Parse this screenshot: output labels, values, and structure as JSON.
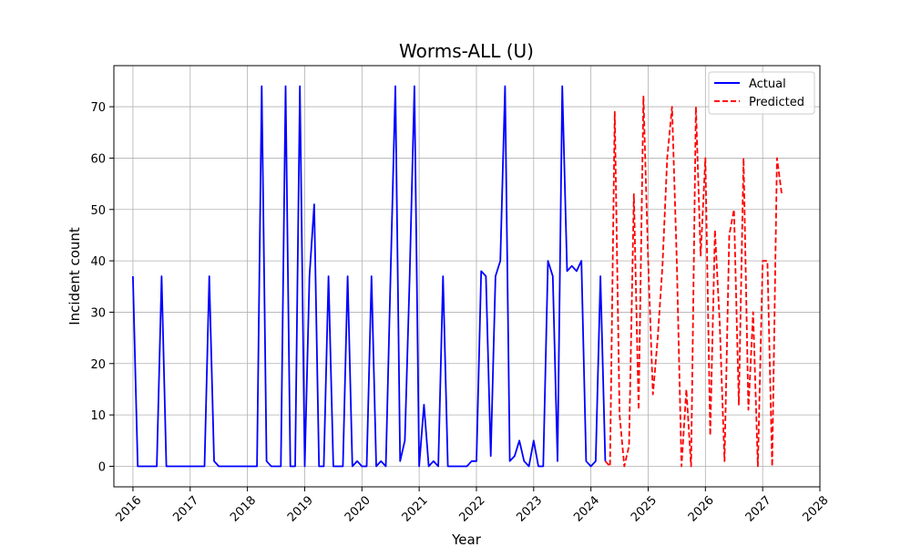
{
  "chart_data": {
    "type": "line",
    "title": "Worms-ALL (U)",
    "xlabel": "Year",
    "ylabel": "Incident count",
    "xlim": [
      "2015-09-01",
      "2028-01-01"
    ],
    "ylim": [
      -4,
      78
    ],
    "x_ticks": [
      "2016",
      "2017",
      "2018",
      "2019",
      "2020",
      "2021",
      "2022",
      "2023",
      "2024",
      "2025",
      "2026",
      "2027",
      "2028"
    ],
    "y_ticks": [
      0,
      10,
      20,
      30,
      40,
      50,
      60,
      70
    ],
    "grid": true,
    "legend_position": "top-right",
    "series": [
      {
        "name": "Actual",
        "color": "#0000ff",
        "style": "solid",
        "x": [
          "2016-01",
          "2016-02",
          "2016-03",
          "2016-04",
          "2016-05",
          "2016-06",
          "2016-07",
          "2016-08",
          "2016-09",
          "2016-10",
          "2016-11",
          "2016-12",
          "2017-01",
          "2017-02",
          "2017-03",
          "2017-04",
          "2017-05",
          "2017-06",
          "2017-07",
          "2017-08",
          "2017-09",
          "2017-10",
          "2017-11",
          "2017-12",
          "2018-01",
          "2018-02",
          "2018-03",
          "2018-04",
          "2018-05",
          "2018-06",
          "2018-07",
          "2018-08",
          "2018-09",
          "2018-10",
          "2018-11",
          "2018-12",
          "2019-01",
          "2019-02",
          "2019-03",
          "2019-04",
          "2019-05",
          "2019-06",
          "2019-07",
          "2019-08",
          "2019-09",
          "2019-10",
          "2019-11",
          "2019-12",
          "2020-01",
          "2020-02",
          "2020-03",
          "2020-04",
          "2020-05",
          "2020-06",
          "2020-07",
          "2020-08",
          "2020-09",
          "2020-10",
          "2020-11",
          "2020-12",
          "2021-01",
          "2021-02",
          "2021-03",
          "2021-04",
          "2021-05",
          "2021-06",
          "2021-07",
          "2021-08",
          "2021-09",
          "2021-10",
          "2021-11",
          "2021-12",
          "2022-01",
          "2022-02",
          "2022-03",
          "2022-04",
          "2022-05",
          "2022-06",
          "2022-07",
          "2022-08",
          "2022-09",
          "2022-10",
          "2022-11",
          "2022-12",
          "2023-01",
          "2023-02",
          "2023-03",
          "2023-04",
          "2023-05",
          "2023-06",
          "2023-07",
          "2023-08",
          "2023-09",
          "2023-10",
          "2023-11",
          "2023-12",
          "2024-01",
          "2024-02",
          "2024-03",
          "2024-04"
        ],
        "values": [
          37,
          0,
          0,
          0,
          0,
          0,
          37,
          0,
          0,
          0,
          0,
          0,
          0,
          0,
          0,
          0,
          37,
          1,
          0,
          0,
          0,
          0,
          0,
          0,
          0,
          0,
          0,
          74,
          1,
          0,
          0,
          0,
          74,
          0,
          0,
          74,
          0,
          37,
          51,
          0,
          0,
          37,
          0,
          0,
          0,
          37,
          0,
          1,
          0,
          0,
          37,
          0,
          1,
          0,
          37,
          74,
          1,
          5,
          37,
          74,
          0,
          12,
          0,
          1,
          0,
          37,
          0,
          0,
          0,
          0,
          0,
          1,
          1,
          38,
          37,
          2,
          37,
          40,
          74,
          1,
          2,
          5,
          1,
          0,
          5,
          0,
          0,
          40,
          37,
          1,
          74,
          38,
          39,
          38,
          40,
          1,
          0,
          1,
          37,
          1
        ]
      },
      {
        "name": "Predicted",
        "color": "#ff0000",
        "style": "dashed",
        "x": [
          "2024-04",
          "2024-05",
          "2024-06",
          "2024-07",
          "2024-08",
          "2024-09",
          "2024-10",
          "2024-11",
          "2024-12",
          "2025-01",
          "2025-02",
          "2025-03",
          "2025-04",
          "2025-05",
          "2025-06",
          "2025-07",
          "2025-08",
          "2025-09",
          "2025-10",
          "2025-11",
          "2025-12",
          "2026-01",
          "2026-02",
          "2026-03",
          "2026-04",
          "2026-05",
          "2026-06",
          "2026-07",
          "2026-08",
          "2026-09",
          "2026-10",
          "2026-11",
          "2026-12",
          "2027-01",
          "2027-02",
          "2027-03",
          "2027-04",
          "2027-05"
        ],
        "values": [
          1,
          0,
          69,
          10,
          0,
          4,
          53,
          11,
          72,
          40,
          14,
          25,
          39,
          60,
          70,
          40,
          0,
          15,
          0,
          70,
          41,
          60,
          6,
          46,
          28,
          1,
          45,
          50,
          12,
          60,
          11,
          30,
          0,
          40,
          40,
          0,
          60,
          53
        ]
      }
    ]
  }
}
